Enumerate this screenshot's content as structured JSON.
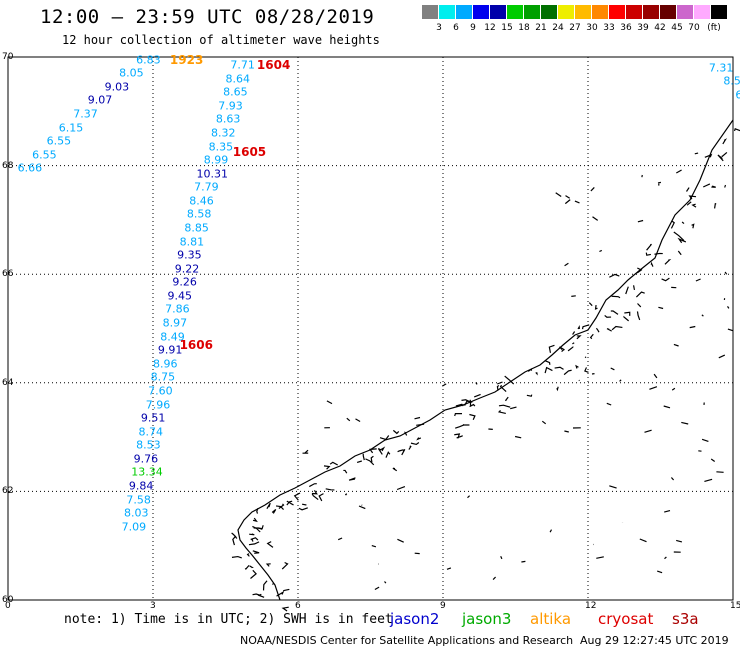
{
  "title": "12:00 — 23:59 UTC 08/28/2019",
  "subtitle": "12 hour collection of altimeter wave heights",
  "legend": {
    "colors": [
      "#808080",
      "#00eeee",
      "#00aaff",
      "#0000ee",
      "#0000aa",
      "#00cc00",
      "#00a000",
      "#007000",
      "#eeee00",
      "#ffbb00",
      "#ff8800",
      "#ff0000",
      "#cc0000",
      "#990000",
      "#660000",
      "#cc66cc",
      "#ffaaff",
      "#000000"
    ],
    "labels": [
      "3",
      "6",
      "9",
      "12",
      "15",
      "18",
      "21",
      "24",
      "27",
      "30",
      "33",
      "36",
      "39",
      "42",
      "45",
      "70",
      "(ft)"
    ]
  },
  "axes": {
    "x_ticks": [
      "0",
      "3",
      "6",
      "9",
      "12",
      "15"
    ],
    "y_ticks": [
      "70",
      "68",
      "66",
      "64",
      "62",
      "60"
    ],
    "lon_range": [
      0,
      15
    ],
    "lat_range": [
      60,
      70
    ]
  },
  "note": "note: 1) Time is in UTC; 2) SWH is in feet",
  "satellites": [
    {
      "name": "jason2",
      "color": "#0000cc"
    },
    {
      "name": "jason3",
      "color": "#00aa00"
    },
    {
      "name": "altika",
      "color": "#ff9900"
    },
    {
      "name": "cryosat",
      "color": "#dd0000"
    },
    {
      "name": "s3a",
      "color": "#aa0000"
    }
  ],
  "credit": "NOAA/NESDIS Center for Satellite Applications and Research",
  "timestamp": "Aug 29 12:27:45 UTC 2019",
  "pass_ids": [
    {
      "text": "1923",
      "color": "#ff9900",
      "lon": 3.35,
      "lat": 69.95
    },
    {
      "text": "1604",
      "color": "#dd0000",
      "lon": 5.15,
      "lat": 69.85
    },
    {
      "text": "1605",
      "color": "#dd0000",
      "lon": 4.65,
      "lat": 68.25
    },
    {
      "text": "1606",
      "color": "#dd0000",
      "lon": 3.55,
      "lat": 64.7
    }
  ],
  "tracks": [
    {
      "name": "track-west",
      "points": [
        {
          "v": "6.83",
          "lon": 2.65,
          "lat": 69.95,
          "c": "#00aaff"
        },
        {
          "v": "8.05",
          "lon": 2.3,
          "lat": 69.7,
          "c": "#00aaff"
        },
        {
          "v": "9.03",
          "lon": 2.0,
          "lat": 69.45,
          "c": "#0000aa"
        },
        {
          "v": "9.07",
          "lon": 1.65,
          "lat": 69.2,
          "c": "#0000aa"
        },
        {
          "v": "7.37",
          "lon": 1.35,
          "lat": 68.95,
          "c": "#00aaff"
        },
        {
          "v": "6.15",
          "lon": 1.05,
          "lat": 68.7,
          "c": "#00aaff"
        },
        {
          "v": "6.55",
          "lon": 0.8,
          "lat": 68.45,
          "c": "#00aaff"
        },
        {
          "v": "6.55",
          "lon": 0.5,
          "lat": 68.2,
          "c": "#00aaff"
        },
        {
          "v": "6.66",
          "lon": 0.2,
          "lat": 67.95,
          "c": "#00aaff"
        }
      ]
    },
    {
      "name": "track-middle",
      "points": [
        {
          "v": "7.71",
          "lon": 4.6,
          "lat": 69.85,
          "c": "#00aaff"
        },
        {
          "v": "8.64",
          "lon": 4.5,
          "lat": 69.6,
          "c": "#00aaff"
        },
        {
          "v": "8.65",
          "lon": 4.45,
          "lat": 69.35,
          "c": "#00aaff"
        },
        {
          "v": "7.93",
          "lon": 4.35,
          "lat": 69.1,
          "c": "#00aaff"
        },
        {
          "v": "8.63",
          "lon": 4.3,
          "lat": 68.85,
          "c": "#00aaff"
        },
        {
          "v": "8.32",
          "lon": 4.2,
          "lat": 68.6,
          "c": "#00aaff"
        },
        {
          "v": "8.35",
          "lon": 4.15,
          "lat": 68.35,
          "c": "#00aaff"
        },
        {
          "v": "8.99",
          "lon": 4.05,
          "lat": 68.1,
          "c": "#00aaff"
        },
        {
          "v": "10.31",
          "lon": 3.9,
          "lat": 67.85,
          "c": "#0000aa"
        },
        {
          "v": "7.79",
          "lon": 3.85,
          "lat": 67.6,
          "c": "#00aaff"
        },
        {
          "v": "8.46",
          "lon": 3.75,
          "lat": 67.35,
          "c": "#00aaff"
        },
        {
          "v": "8.58",
          "lon": 3.7,
          "lat": 67.1,
          "c": "#00aaff"
        },
        {
          "v": "8.85",
          "lon": 3.65,
          "lat": 66.85,
          "c": "#00aaff"
        },
        {
          "v": "8.81",
          "lon": 3.55,
          "lat": 66.6,
          "c": "#00aaff"
        },
        {
          "v": "9.35",
          "lon": 3.5,
          "lat": 66.35,
          "c": "#0000aa"
        },
        {
          "v": "9.22",
          "lon": 3.45,
          "lat": 66.1,
          "c": "#0000aa"
        },
        {
          "v": "9.26",
          "lon": 3.4,
          "lat": 65.85,
          "c": "#0000aa"
        },
        {
          "v": "9.45",
          "lon": 3.3,
          "lat": 65.6,
          "c": "#0000aa"
        },
        {
          "v": "7.86",
          "lon": 3.25,
          "lat": 65.35,
          "c": "#00aaff"
        },
        {
          "v": "8.97",
          "lon": 3.2,
          "lat": 65.1,
          "c": "#00aaff"
        },
        {
          "v": "8.49",
          "lon": 3.15,
          "lat": 64.85,
          "c": "#00aaff"
        },
        {
          "v": "9.91",
          "lon": 3.1,
          "lat": 64.6,
          "c": "#0000aa"
        },
        {
          "v": "8.96",
          "lon": 3.0,
          "lat": 64.35,
          "c": "#00aaff"
        },
        {
          "v": "8.75",
          "lon": 2.95,
          "lat": 64.1,
          "c": "#00aaff"
        },
        {
          "v": "7.60",
          "lon": 2.9,
          "lat": 63.85,
          "c": "#00aaff"
        },
        {
          "v": "7.96",
          "lon": 2.85,
          "lat": 63.6,
          "c": "#00aaff"
        },
        {
          "v": "9.51",
          "lon": 2.75,
          "lat": 63.35,
          "c": "#0000aa"
        },
        {
          "v": "8.74",
          "lon": 2.7,
          "lat": 63.1,
          "c": "#00aaff"
        },
        {
          "v": "8.53",
          "lon": 2.65,
          "lat": 62.85,
          "c": "#00aaff"
        },
        {
          "v": "9.76",
          "lon": 2.6,
          "lat": 62.6,
          "c": "#0000aa"
        },
        {
          "v": "13.34",
          "lon": 2.55,
          "lat": 62.35,
          "c": "#00cc00"
        },
        {
          "v": "9.84",
          "lon": 2.5,
          "lat": 62.1,
          "c": "#0000aa"
        },
        {
          "v": "7.58",
          "lon": 2.45,
          "lat": 61.85,
          "c": "#00aaff"
        },
        {
          "v": "8.03",
          "lon": 2.4,
          "lat": 61.6,
          "c": "#00aaff"
        },
        {
          "v": "7.09",
          "lon": 2.35,
          "lat": 61.35,
          "c": "#00aaff"
        }
      ]
    },
    {
      "name": "track-east",
      "points": [
        {
          "v": "7.31",
          "lon": 14.5,
          "lat": 69.8,
          "c": "#00aaff"
        },
        {
          "v": "8.5",
          "lon": 14.8,
          "lat": 69.55,
          "c": "#00aaff"
        },
        {
          "v": "6",
          "lon": 15.05,
          "lat": 69.3,
          "c": "#00aaff"
        }
      ]
    }
  ]
}
